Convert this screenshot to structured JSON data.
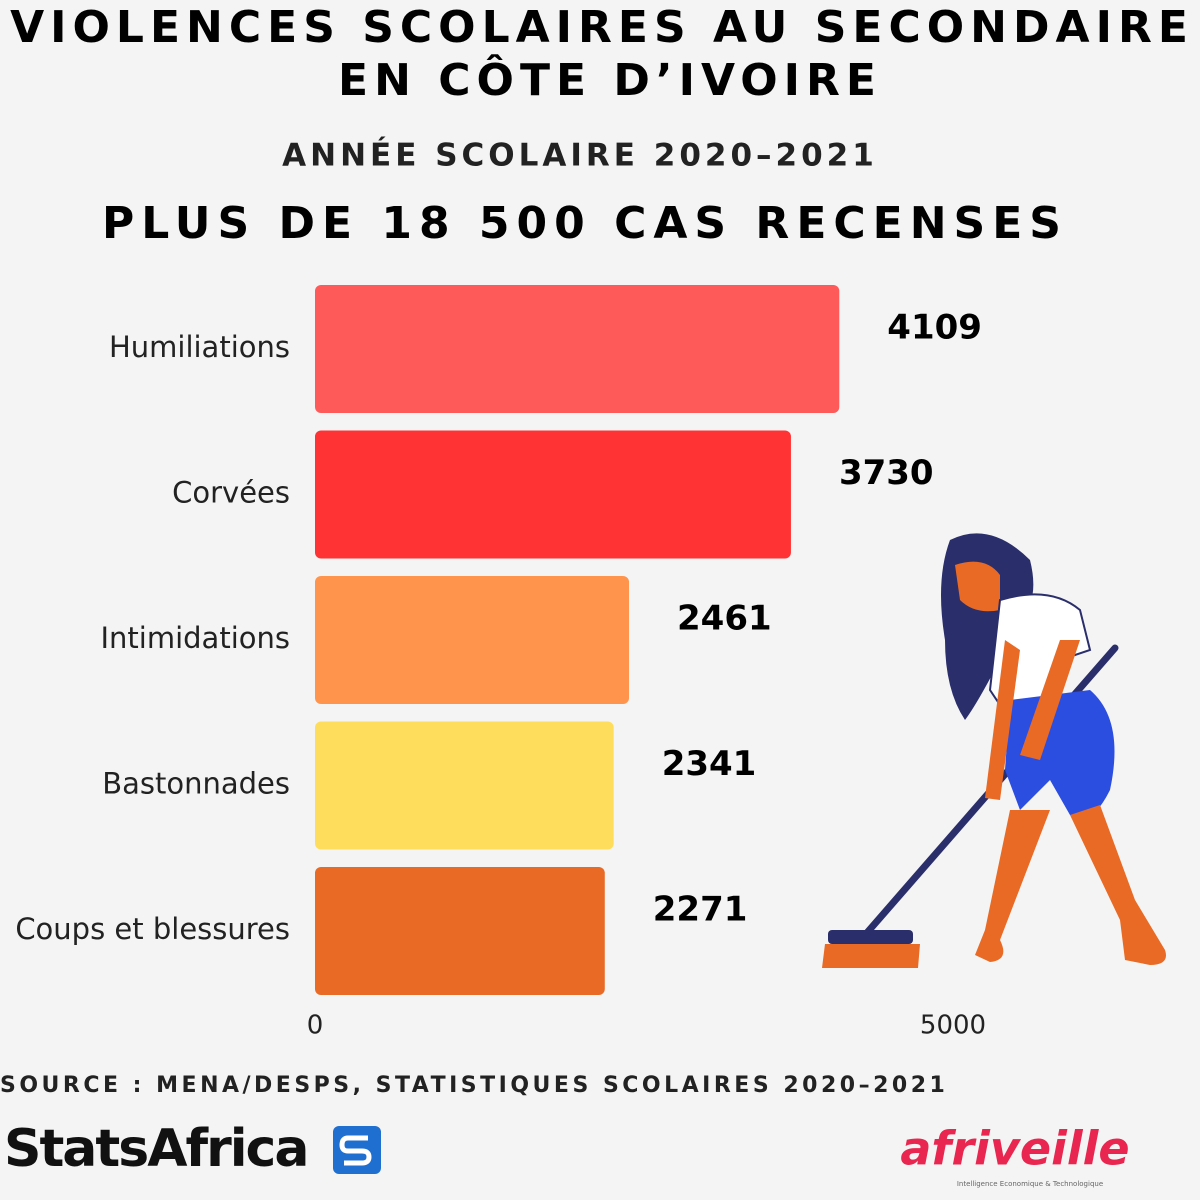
{
  "chart_data": {
    "type": "hbar",
    "title_lines": [
      "VIOLENCES SCOLAIRES AU SECONDAIRE",
      "EN CÔTE D’IVOIRE"
    ],
    "subtitle": "ANNÉE SCOLAIRE 2020–2021",
    "headline": "PLUS DE 18 500 CAS RECENSES",
    "categories": [
      "Humiliations",
      "Corvées",
      "Intimidations",
      "Bastonnades",
      "Coups et blessures"
    ],
    "values": [
      4109,
      3730,
      2461,
      2341,
      2271
    ],
    "colors": [
      "#ff5a5a",
      "#ff3333",
      "#ff944d",
      "#ffdd5c",
      "#e96a25"
    ],
    "xlim": [
      0,
      5000
    ],
    "xticks": [
      0,
      5000
    ],
    "source": "SOURCE : MENA/DESPS, STATISTIQUES SCOLAIRES 2020–2021",
    "brand_left": "StatsAfrica",
    "brand_right": "afriveille",
    "brand_right_tagline": "Intelligence Economique & Technologique"
  }
}
